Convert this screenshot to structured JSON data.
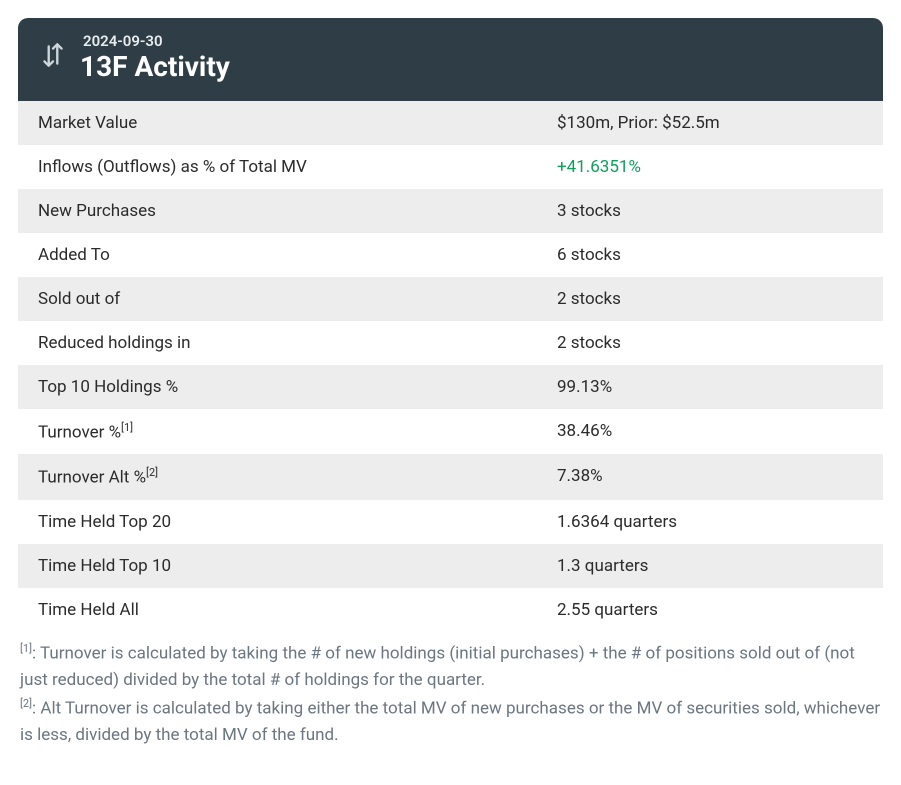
{
  "header": {
    "date": "2024-09-30",
    "title": "13F Activity",
    "bg_color": "#2f3e46",
    "text_color": "#ffffff",
    "icon_color": "#cfd6db"
  },
  "colors": {
    "row_odd_bg": "#ededed",
    "row_even_bg": "#ffffff",
    "text": "#2b2b2b",
    "positive": "#0da05a",
    "footnote_color": "#6b7680"
  },
  "rows": [
    {
      "label": "Market Value",
      "value": "$130m, Prior: $52.5m"
    },
    {
      "label": "Inflows (Outflows) as % of Total MV",
      "value": "+41.6351%",
      "positive": true
    },
    {
      "label": "New Purchases",
      "value": "3 stocks"
    },
    {
      "label": "Added To",
      "value": "6 stocks"
    },
    {
      "label": "Sold out of",
      "value": "2 stocks"
    },
    {
      "label": "Reduced holdings in",
      "value": "2 stocks"
    },
    {
      "label": "Top 10 Holdings %",
      "value": "99.13%"
    },
    {
      "label": "Turnover %",
      "sup": "[1]",
      "value": "38.46%"
    },
    {
      "label": "Turnover Alt %",
      "sup": "[2]",
      "value": "7.38%"
    },
    {
      "label": "Time Held Top 20",
      "value": "1.6364 quarters"
    },
    {
      "label": "Time Held Top 10",
      "value": "1.3 quarters"
    },
    {
      "label": "Time Held All",
      "value": "2.55 quarters"
    }
  ],
  "footnotes": [
    {
      "sup": "[1]",
      "text": ": Turnover is calculated by taking the # of new holdings (initial purchases) + the # of positions sold out of (not just reduced) divided by the total # of holdings for the quarter."
    },
    {
      "sup": "[2]",
      "text": ": Alt Turnover is calculated by taking either the total MV of new purchases or the MV of securities sold, whichever is less, divided by the total MV of the fund."
    }
  ]
}
